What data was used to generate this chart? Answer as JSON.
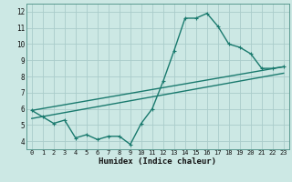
{
  "xlabel": "Humidex (Indice chaleur)",
  "xlim": [
    -0.5,
    23.5
  ],
  "ylim": [
    3.5,
    12.5
  ],
  "yticks": [
    4,
    5,
    6,
    7,
    8,
    9,
    10,
    11,
    12
  ],
  "xticks": [
    0,
    1,
    2,
    3,
    4,
    5,
    6,
    7,
    8,
    9,
    10,
    11,
    12,
    13,
    14,
    15,
    16,
    17,
    18,
    19,
    20,
    21,
    22,
    23
  ],
  "bg_color": "#cce8e4",
  "grid_color": "#aaccca",
  "line_color": "#1a7a6e",
  "line1_x": [
    0,
    1,
    2,
    3,
    4,
    5,
    6,
    7,
    8,
    9,
    10,
    11,
    12,
    13,
    14,
    15,
    16,
    17,
    18,
    19,
    20,
    21,
    22,
    23
  ],
  "line1_y": [
    5.9,
    5.5,
    5.1,
    5.3,
    4.2,
    4.4,
    4.1,
    4.3,
    4.3,
    3.8,
    5.1,
    6.0,
    7.7,
    9.6,
    11.6,
    11.6,
    11.9,
    11.1,
    10.0,
    9.8,
    9.4,
    8.5,
    8.5,
    8.6
  ],
  "line2_x": [
    0,
    23
  ],
  "line2_y": [
    5.9,
    8.6
  ],
  "line3_x": [
    0,
    23
  ],
  "line3_y": [
    5.4,
    8.2
  ],
  "marker_size": 3.5,
  "line_width": 1.0
}
